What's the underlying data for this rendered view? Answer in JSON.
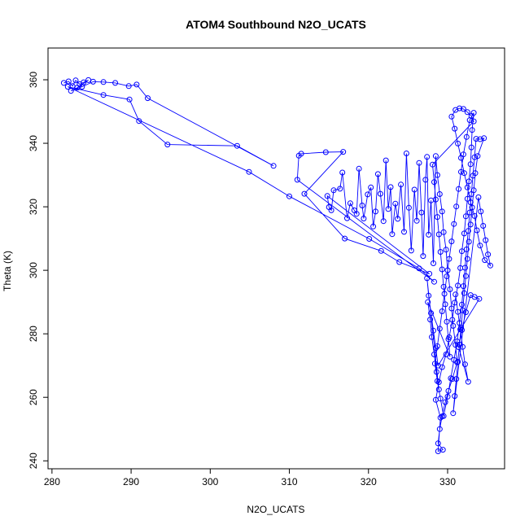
{
  "chart_data": {
    "type": "scatter",
    "title": "ATOM4 Southbound N2O_UCATS",
    "xlabel": "N2O_UCATS",
    "ylabel": "Theta (K)",
    "xlim": [
      279.5,
      337.2
    ],
    "ylim": [
      237.5,
      370.0
    ],
    "xticks": [
      280,
      290,
      300,
      310,
      320,
      330
    ],
    "yticks": [
      240,
      260,
      280,
      300,
      320,
      340,
      360
    ],
    "xtick_labels": [
      "280",
      "290",
      "300",
      "310",
      "320",
      "330"
    ],
    "ytick_labels": [
      "240",
      "260",
      "280",
      "300",
      "320",
      "340",
      "360"
    ],
    "grid": false,
    "series": [
      {
        "color": "#0000ff",
        "marker": "open-circle",
        "connected": true,
        "points": [
          [
            281.5,
            359.0
          ],
          [
            282.1,
            359.5
          ],
          [
            282.6,
            358.0
          ],
          [
            283.0,
            359.8
          ],
          [
            283.5,
            358.6
          ],
          [
            284.0,
            359.2
          ],
          [
            284.6,
            359.9
          ],
          [
            283.2,
            357.5
          ],
          [
            282.4,
            356.5
          ],
          [
            283.8,
            357.8
          ],
          [
            285.2,
            359.4
          ],
          [
            286.5,
            359.3
          ],
          [
            288.0,
            359.0
          ],
          [
            289.7,
            358.0
          ],
          [
            290.7,
            358.5
          ],
          [
            292.1,
            354.2
          ],
          [
            308.0,
            332.9
          ],
          [
            303.4,
            339.2
          ],
          [
            294.6,
            339.6
          ],
          [
            291.0,
            347.0
          ],
          [
            289.8,
            353.8
          ],
          [
            286.5,
            355.2
          ],
          [
            282.0,
            357.8
          ],
          [
            304.9,
            331.0
          ],
          [
            310.0,
            323.3
          ],
          [
            320.1,
            309.9
          ],
          [
            326.4,
            300.6
          ],
          [
            328.3,
            296.4
          ],
          [
            311.0,
            328.5
          ],
          [
            311.2,
            336.1
          ],
          [
            311.5,
            336.7
          ],
          [
            314.6,
            337.2
          ],
          [
            316.8,
            337.3
          ],
          [
            311.9,
            324.1
          ],
          [
            317.0,
            310.0
          ],
          [
            321.6,
            306.1
          ],
          [
            323.9,
            302.6
          ],
          [
            327.7,
            298.9
          ],
          [
            314.8,
            323.4
          ],
          [
            315.0,
            319.9
          ],
          [
            315.3,
            318.9
          ],
          [
            315.6,
            325.2
          ],
          [
            316.4,
            325.7
          ],
          [
            316.7,
            330.8
          ],
          [
            317.3,
            316.4
          ],
          [
            317.7,
            321.1
          ],
          [
            318.2,
            318.9
          ],
          [
            318.5,
            317.8
          ],
          [
            318.8,
            332.0
          ],
          [
            319.2,
            320.4
          ],
          [
            319.4,
            316.3
          ],
          [
            319.9,
            323.9
          ],
          [
            320.3,
            326.1
          ],
          [
            320.6,
            313.8
          ],
          [
            320.9,
            318.5
          ],
          [
            321.2,
            330.3
          ],
          [
            321.5,
            324.1
          ],
          [
            321.9,
            315.5
          ],
          [
            322.2,
            334.6
          ],
          [
            322.5,
            319.3
          ],
          [
            322.8,
            326.2
          ],
          [
            323.0,
            311.4
          ],
          [
            323.4,
            321.0
          ],
          [
            323.7,
            316.2
          ],
          [
            324.1,
            327.0
          ],
          [
            324.5,
            312.1
          ],
          [
            324.8,
            336.8
          ],
          [
            325.1,
            319.7
          ],
          [
            325.4,
            306.2
          ],
          [
            325.8,
            325.4
          ],
          [
            326.1,
            315.6
          ],
          [
            326.4,
            333.8
          ],
          [
            326.7,
            318.2
          ],
          [
            326.9,
            304.5
          ],
          [
            327.2,
            328.5
          ],
          [
            327.4,
            335.7
          ],
          [
            327.6,
            311.2
          ],
          [
            327.9,
            322.0
          ],
          [
            328.2,
            302.2
          ],
          [
            328.5,
            336.0
          ],
          [
            328.7,
            330.0
          ],
          [
            329.0,
            324.0
          ],
          [
            329.3,
            318.5
          ],
          [
            329.5,
            312.0
          ],
          [
            329.8,
            306.5
          ],
          [
            330.0,
            300.0
          ],
          [
            330.3,
            294.0
          ],
          [
            330.5,
            288.0
          ],
          [
            330.7,
            282.5
          ],
          [
            331.0,
            276.5
          ],
          [
            331.2,
            271.0
          ],
          [
            330.6,
            265.8
          ],
          [
            330.1,
            262.0
          ],
          [
            329.7,
            258.5
          ],
          [
            329.3,
            254.0
          ],
          [
            329.0,
            250.0
          ],
          [
            328.8,
            245.5
          ],
          [
            329.4,
            243.5
          ],
          [
            328.8,
            243.0
          ],
          [
            329.1,
            253.6
          ],
          [
            328.5,
            259.2
          ],
          [
            328.9,
            264.8
          ],
          [
            329.3,
            269.5
          ],
          [
            329.8,
            273.5
          ],
          [
            330.2,
            278.9
          ],
          [
            330.6,
            284.4
          ],
          [
            330.9,
            289.8
          ],
          [
            331.3,
            295.2
          ],
          [
            331.6,
            300.7
          ],
          [
            331.8,
            306.0
          ],
          [
            332.1,
            311.6
          ],
          [
            332.3,
            317.0
          ],
          [
            332.5,
            322.5
          ],
          [
            332.7,
            328.0
          ],
          [
            332.9,
            333.4
          ],
          [
            333.0,
            338.7
          ],
          [
            333.1,
            344.2
          ],
          [
            333.3,
            349.6
          ],
          [
            332.8,
            347.3
          ],
          [
            332.4,
            342.0
          ],
          [
            332.0,
            336.5
          ],
          [
            331.7,
            331.0
          ],
          [
            331.4,
            325.6
          ],
          [
            331.1,
            320.1
          ],
          [
            330.8,
            314.6
          ],
          [
            330.5,
            309.1
          ],
          [
            330.2,
            303.6
          ],
          [
            329.9,
            298.1
          ],
          [
            329.6,
            292.6
          ],
          [
            329.3,
            287.1
          ],
          [
            329.0,
            281.6
          ],
          [
            328.7,
            276.1
          ],
          [
            328.4,
            270.6
          ],
          [
            328.7,
            265.1
          ],
          [
            329.1,
            259.6
          ],
          [
            329.5,
            254.1
          ],
          [
            330.0,
            260.2
          ],
          [
            330.4,
            266.0
          ],
          [
            330.8,
            271.8
          ],
          [
            331.2,
            277.6
          ],
          [
            331.5,
            283.4
          ],
          [
            331.8,
            289.2
          ],
          [
            332.0,
            295.0
          ],
          [
            332.2,
            300.8
          ],
          [
            332.4,
            306.6
          ],
          [
            332.6,
            312.4
          ],
          [
            332.8,
            318.2
          ],
          [
            333.0,
            324.0
          ],
          [
            333.2,
            329.8
          ],
          [
            333.4,
            335.6
          ],
          [
            333.6,
            341.4
          ],
          [
            334.1,
            341.3
          ],
          [
            334.6,
            341.6
          ],
          [
            333.8,
            336.0
          ],
          [
            333.5,
            330.6
          ],
          [
            333.3,
            325.2
          ],
          [
            333.1,
            319.8
          ],
          [
            332.9,
            314.4
          ],
          [
            332.7,
            309.0
          ],
          [
            332.5,
            303.6
          ],
          [
            332.3,
            298.2
          ],
          [
            332.1,
            292.8
          ],
          [
            331.9,
            287.4
          ],
          [
            331.7,
            282.0
          ],
          [
            331.5,
            276.6
          ],
          [
            331.3,
            271.2
          ],
          [
            331.1,
            265.8
          ],
          [
            330.9,
            260.4
          ],
          [
            330.7,
            255.0
          ],
          [
            333.9,
            323.0
          ],
          [
            334.2,
            318.5
          ],
          [
            334.5,
            314.0
          ],
          [
            334.8,
            309.5
          ],
          [
            335.1,
            305.0
          ],
          [
            335.4,
            301.5
          ],
          [
            334.7,
            303.2
          ],
          [
            334.1,
            307.8
          ],
          [
            333.7,
            312.6
          ],
          [
            333.4,
            317.1
          ],
          [
            332.9,
            321.4
          ],
          [
            332.5,
            326.1
          ],
          [
            332.1,
            330.6
          ],
          [
            331.7,
            335.4
          ],
          [
            331.3,
            339.9
          ],
          [
            330.9,
            344.6
          ],
          [
            330.5,
            348.4
          ],
          [
            331.0,
            350.5
          ],
          [
            331.5,
            351.0
          ],
          [
            332.0,
            350.8
          ],
          [
            332.5,
            349.8
          ],
          [
            333.0,
            348.6
          ],
          [
            333.3,
            346.9
          ],
          [
            328.1,
            333.3
          ],
          [
            328.3,
            327.8
          ],
          [
            328.5,
            322.3
          ],
          [
            328.7,
            316.8
          ],
          [
            328.9,
            311.3
          ],
          [
            329.1,
            305.8
          ],
          [
            329.3,
            300.3
          ],
          [
            329.5,
            294.8
          ],
          [
            329.7,
            289.3
          ],
          [
            329.9,
            283.8
          ],
          [
            330.1,
            278.3
          ],
          [
            330.3,
            272.8
          ],
          [
            327.5,
            290.0
          ],
          [
            327.8,
            284.5
          ],
          [
            328.0,
            279.0
          ],
          [
            328.3,
            273.5
          ],
          [
            328.6,
            268.0
          ],
          [
            328.9,
            262.5
          ],
          [
            327.4,
            297.5
          ],
          [
            327.6,
            292.0
          ],
          [
            327.9,
            286.5
          ],
          [
            328.2,
            281.0
          ],
          [
            328.5,
            275.5
          ],
          [
            328.8,
            270.0
          ],
          [
            334.0,
            291.0
          ],
          [
            333.4,
            291.6
          ],
          [
            332.9,
            292.2
          ],
          [
            332.3,
            286.8
          ],
          [
            331.8,
            281.2
          ],
          [
            331.4,
            275.8
          ],
          [
            332.6,
            264.9
          ],
          [
            332.2,
            270.4
          ],
          [
            331.9,
            275.9
          ],
          [
            331.6,
            281.4
          ],
          [
            331.3,
            286.9
          ],
          [
            331.0,
            292.4
          ]
        ]
      }
    ]
  }
}
